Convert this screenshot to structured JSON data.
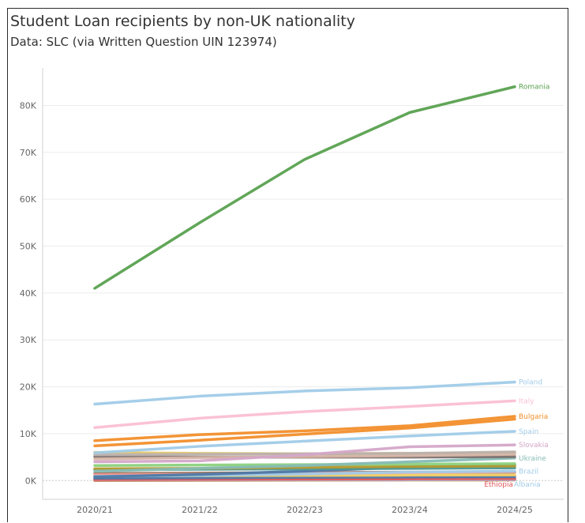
{
  "title": "Student Loan recipients by non-UK nationality",
  "subtitle": "Data: SLC (via Written Question UIN 123974)",
  "chart_data": {
    "type": "line",
    "categories": [
      "2020/21",
      "2021/22",
      "2022/23",
      "2023/24",
      "2024/25"
    ],
    "ylim": [
      -4000,
      88000
    ],
    "yticks": [
      0,
      10000,
      20000,
      30000,
      40000,
      50000,
      60000,
      70000,
      80000
    ],
    "ytick_labels": [
      "0K",
      "10K",
      "20K",
      "30K",
      "40K",
      "50K",
      "60K",
      "70K",
      "80K"
    ],
    "grid": true,
    "series": [
      {
        "name": "Romania",
        "color": "#59a14f",
        "values": [
          41000,
          55000,
          68500,
          78500,
          84000
        ]
      },
      {
        "name": "Poland",
        "color": "#a0cbe8",
        "values": [
          16300,
          18000,
          19100,
          19800,
          21000
        ]
      },
      {
        "name": "Italy",
        "color": "#fabfd2",
        "values": [
          11300,
          13300,
          14700,
          15800,
          17000
        ]
      },
      {
        "name": "Bulgaria",
        "color": "#f28e2b",
        "values": [
          8500,
          9800,
          10600,
          11700,
          13700
        ]
      },
      {
        "name": "",
        "color": "#f28e2b",
        "values": [
          7400,
          8600,
          9900,
          11200,
          13100
        ]
      },
      {
        "name": "Spain",
        "color": "#a0cbe8",
        "values": [
          5900,
          7300,
          8400,
          9500,
          10500
        ]
      },
      {
        "name": "Slovakia",
        "color": "#d4a6c8",
        "values": [
          4000,
          4200,
          5500,
          7200,
          7600
        ]
      },
      {
        "name": "",
        "color": "#bab0ac",
        "values": [
          5500,
          5600,
          5700,
          5800,
          6100
        ]
      },
      {
        "name": "",
        "color": "#d7b5a6",
        "values": [
          4600,
          4900,
          5100,
          5300,
          5600
        ]
      },
      {
        "name": "",
        "color": "#e6c96b",
        "values": [
          6000,
          5800,
          5700,
          5800,
          5900
        ]
      },
      {
        "name": "",
        "color": "#79706e",
        "values": [
          5100,
          5000,
          5000,
          5000,
          5100
        ]
      },
      {
        "name": "Ukraine",
        "color": "#86bcb6",
        "values": [
          2000,
          2600,
          3200,
          4000,
          4800
        ]
      },
      {
        "name": "",
        "color": "#8cd17d",
        "values": [
          3200,
          3300,
          3400,
          3500,
          3600
        ]
      },
      {
        "name": "",
        "color": "#b6992d",
        "values": [
          2500,
          2600,
          2800,
          3000,
          3100
        ]
      },
      {
        "name": "",
        "color": "#499894",
        "values": [
          2300,
          2400,
          2500,
          2600,
          2700
        ]
      },
      {
        "name": "",
        "color": "#4e79a7",
        "values": [
          800,
          1300,
          2000,
          2900,
          3300
        ]
      },
      {
        "name": "Brazil",
        "color": "#a0cbe8",
        "values": [
          900,
          1100,
          1400,
          1800,
          2000
        ]
      },
      {
        "name": "",
        "color": "#ff9d9a",
        "values": [
          1200,
          1300,
          1500,
          1700,
          1900
        ]
      },
      {
        "name": "",
        "color": "#9d7660",
        "values": [
          1500,
          1600,
          1700,
          1800,
          1800
        ]
      },
      {
        "name": "",
        "color": "#f1ce63",
        "values": [
          1000,
          1050,
          1100,
          1150,
          1200
        ]
      },
      {
        "name": "",
        "color": "#4e79a7",
        "values": [
          500,
          600,
          700,
          750,
          800
        ]
      },
      {
        "name": "Ethiopia",
        "color": "#e15759",
        "values": [
          200,
          250,
          300,
          350,
          400
        ]
      },
      {
        "name": "Albania",
        "color": "#a0cbe8",
        "values": [
          150,
          180,
          200,
          220,
          250
        ]
      },
      {
        "name": "",
        "color": "#b07aa1",
        "values": [
          300,
          320,
          340,
          360,
          380
        ]
      },
      {
        "name": "",
        "color": "#d37295",
        "values": [
          100,
          120,
          140,
          160,
          180
        ]
      },
      {
        "name": "",
        "color": "#c49a3a",
        "values": [
          0,
          50,
          80,
          100,
          120
        ]
      }
    ]
  }
}
